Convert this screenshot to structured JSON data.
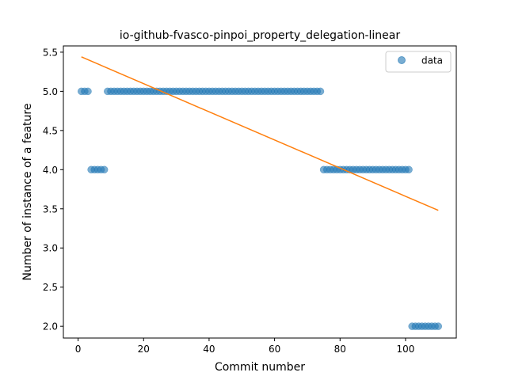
{
  "chart_data": {
    "type": "scatter",
    "title": "io-github-fvasco-pinpoi_property_delegation-linear",
    "xlabel": "Commit number",
    "ylabel": "Number of instance of a feature",
    "xlim": [
      -4.5,
      115.5
    ],
    "ylim": [
      1.85,
      5.58
    ],
    "xticks": [
      0,
      20,
      40,
      60,
      80,
      100
    ],
    "xtick_labels": [
      "0",
      "20",
      "40",
      "60",
      "80",
      "100"
    ],
    "yticks": [
      2.0,
      2.5,
      3.0,
      3.5,
      4.0,
      4.5,
      5.0,
      5.5
    ],
    "ytick_labels": [
      "2.0",
      "2.5",
      "3.0",
      "3.5",
      "4.0",
      "4.5",
      "5.0",
      "5.5"
    ],
    "grid": false,
    "legend_position": "top-right",
    "series": [
      {
        "name": "data",
        "kind": "scatter",
        "color": "#1f77b4",
        "segments": [
          {
            "x_start": 1,
            "x_end": 3,
            "y": 5
          },
          {
            "x_start": 4,
            "x_end": 8,
            "y": 4
          },
          {
            "x_start": 9,
            "x_end": 74,
            "y": 5
          },
          {
            "x_start": 75,
            "x_end": 101,
            "y": 4
          },
          {
            "x_start": 102,
            "x_end": 110,
            "y": 2
          }
        ]
      },
      {
        "name": "",
        "kind": "line",
        "color": "#ff7f0e",
        "x": [
          1,
          110
        ],
        "y": [
          5.44,
          3.48
        ]
      }
    ]
  }
}
